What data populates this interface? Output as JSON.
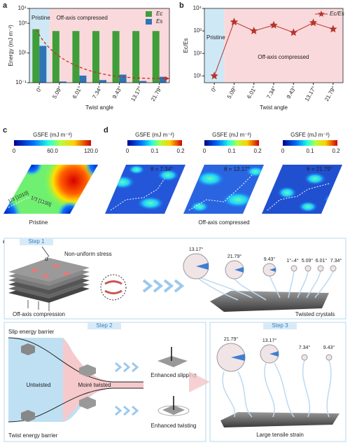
{
  "chart_data": [
    {
      "type": "bar",
      "log": true,
      "categories": [
        "0°",
        "5.09°",
        "6.01°",
        "7.34°",
        "9.43°",
        "13.17°",
        "21.79°"
      ],
      "series": [
        {
          "name": "Ec",
          "color": "#3f9e3a",
          "values": [
            400,
            300,
            300,
            300,
            300,
            300,
            300
          ]
        },
        {
          "name": "Es",
          "color": "#2f74b5",
          "values": [
            30,
            0.12,
            0.3,
            0.15,
            0.35,
            0.13,
            0.25
          ]
        }
      ],
      "ylim": [
        0.1,
        10000
      ],
      "yticks": [
        {
          "value": 0.1,
          "label": "10⁻¹"
        },
        {
          "value": 10,
          "label": "10¹"
        },
        {
          "value": 1000,
          "label": "10³"
        },
        {
          "value": 10000,
          "label": "10⁴"
        }
      ],
      "xlabel": "Twist angle",
      "ylabel": "Energy (mJ m⁻²)",
      "annotations": [
        "Pristine",
        "Off-axis compressed"
      ],
      "legend": "upper right"
    },
    {
      "type": "line",
      "log": true,
      "categories": [
        "0°",
        "5.09°",
        "6.01°",
        "7.34°",
        "9.43°",
        "13.17°",
        "21.79°"
      ],
      "series": [
        {
          "name": "Ec/Es",
          "color": "#b5352b",
          "values": [
            10,
            2500,
            1000,
            1800,
            850,
            2300,
            1200
          ]
        }
      ],
      "ylim": [
        5,
        10000
      ],
      "yticks": [
        {
          "value": 10,
          "label": "10¹"
        },
        {
          "value": 100,
          "label": "10²"
        },
        {
          "value": 1000,
          "label": "10³"
        },
        {
          "value": 10000,
          "label": "10⁴"
        }
      ],
      "xlabel": "Twist angle",
      "ylabel": "Ec/Es",
      "annotations": [
        "Pristine",
        "Off-axis compressed"
      ],
      "legend": "upper right"
    }
  ],
  "figure": {
    "letters": [
      "a",
      "b",
      "c",
      "d",
      "e"
    ],
    "c": {
      "colorbar_title": "GSFE (mJ m⁻²)",
      "colorbar_ticks": [
        "0",
        "60.0",
        "120.0"
      ],
      "dir1": "1/3 [1010]",
      "dir2": "1/3 [1100]",
      "caption": "Pristine"
    },
    "d": {
      "colorbar_title": "GSFE (mJ m⁻²)",
      "colorbar_ticks": [
        "0",
        "0.1",
        "0.2"
      ],
      "angles": [
        "θ = 7.34°",
        "θ = 13.17°",
        "θ = 21.79°"
      ],
      "caption": "Off-axis compressed"
    },
    "e": {
      "step1": "Step 1",
      "stress": "Non-uniform stress",
      "d": "d",
      "compression": "Off-axis compression",
      "angles1": [
        "13.17°",
        "21.79°",
        "9.43°",
        "1°–4°",
        "5.09°",
        "6.01°",
        "7.34°"
      ],
      "twisted": "Twisted crystals",
      "step2": "Step 2",
      "slip": "Slip energy barrier",
      "untwisted": "Untwisted",
      "moire": "Moiré twisted",
      "slipping": "Enhanced slipping",
      "twisting": "Enhanced twisting",
      "twist_barrier": "Twist energy barrier",
      "step3": "Step 3",
      "angles3": [
        "21.79°",
        "13.17°",
        "7.34°",
        "9.43°"
      ],
      "tensile": "Large tensile strain"
    }
  }
}
